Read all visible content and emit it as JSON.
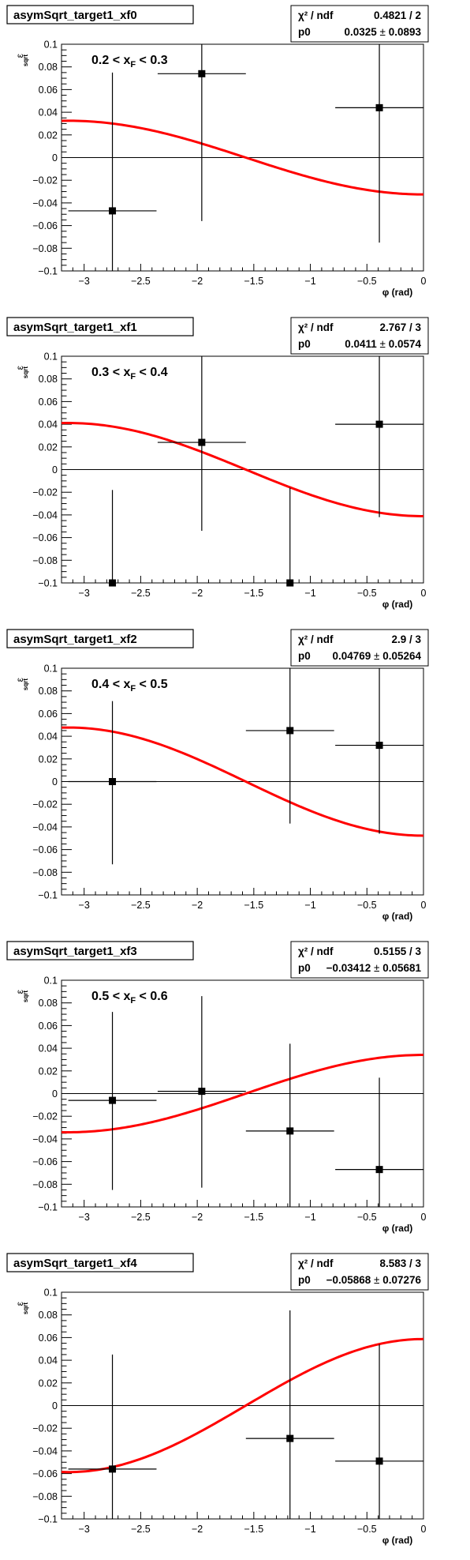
{
  "common": {
    "xlabel": "φ (rad)",
    "ylabel_main": "ε",
    "ylabel_sub": "sqrt",
    "chi2_label": "χ² / ndf",
    "param_label": "p0",
    "pm": "±",
    "fit_color": "#ff0000",
    "marker_color": "#000000"
  },
  "chart_data": [
    {
      "type": "scatter",
      "title": "asymSqrt_target1_xf0",
      "range_label": {
        "lo": "0.2 < x",
        "sub": "F",
        "hi": " < 0.3"
      },
      "stats": {
        "chi2": "0.4821 / 2",
        "p0_value": "0.0325",
        "p0_error": "0.0893"
      },
      "xlim": [
        -3.2,
        0
      ],
      "ylim": [
        -0.1,
        0.1
      ],
      "xticks": [
        -3,
        -2.5,
        -2,
        -1.5,
        -1,
        -0.5,
        0
      ],
      "xtick_labels": [
        "−3",
        "−2.5",
        "−2",
        "−1.5",
        "−1",
        "−0.5",
        "0"
      ],
      "yticks": [
        -0.1,
        -0.08,
        -0.06,
        -0.04,
        -0.02,
        0,
        0.02,
        0.04,
        0.06,
        0.08,
        0.1
      ],
      "ytick_labels": [
        "−0.1",
        "−0.08",
        "−0.06",
        "−0.04",
        "−0.02",
        "0",
        "0.02",
        "0.04",
        "0.06",
        "0.08",
        "0.1"
      ],
      "points": [
        {
          "x": -2.75,
          "y": -0.047,
          "xerr": 0.39,
          "ylo": -0.1,
          "yhi": 0.075
        },
        {
          "x": -1.96,
          "y": 0.074,
          "xerr": 0.39,
          "ylo": -0.056,
          "yhi": 0.1
        },
        {
          "x": -0.39,
          "y": 0.044,
          "xerr": 0.39,
          "ylo": -0.075,
          "yhi": 0.1
        }
      ],
      "fit": {
        "p0": 0.0325
      }
    },
    {
      "type": "scatter",
      "title": "asymSqrt_target1_xf1",
      "range_label": {
        "lo": "0.3 < x",
        "sub": "F",
        "hi": " < 0.4"
      },
      "stats": {
        "chi2": "2.767 / 3",
        "p0_value": "0.0411",
        "p0_error": "0.0574"
      },
      "xlim": [
        -3.2,
        0
      ],
      "ylim": [
        -0.1,
        0.1
      ],
      "xticks": [
        -3,
        -2.5,
        -2,
        -1.5,
        -1,
        -0.5,
        0
      ],
      "xtick_labels": [
        "−3",
        "−2.5",
        "−2",
        "−1.5",
        "−1",
        "−0.5",
        "0"
      ],
      "yticks": [
        -0.1,
        -0.08,
        -0.06,
        -0.04,
        -0.02,
        0,
        0.02,
        0.04,
        0.06,
        0.08,
        0.1
      ],
      "ytick_labels": [
        "−0.1",
        "−0.08",
        "−0.06",
        "−0.04",
        "−0.02",
        "0",
        "0.02",
        "0.04",
        "0.06",
        "0.08",
        "0.1"
      ],
      "points": [
        {
          "x": -2.75,
          "y": -0.1,
          "xerr": 0,
          "ylo": -0.1,
          "yhi": -0.018
        },
        {
          "x": -1.96,
          "y": 0.024,
          "xerr": 0.39,
          "ylo": -0.054,
          "yhi": 0.1
        },
        {
          "x": -1.18,
          "y": -0.1,
          "xerr": 0,
          "ylo": -0.1,
          "yhi": -0.016
        },
        {
          "x": -0.39,
          "y": 0.04,
          "xerr": 0.39,
          "ylo": -0.042,
          "yhi": 0.1
        }
      ],
      "fit": {
        "p0": 0.0411
      }
    },
    {
      "type": "scatter",
      "title": "asymSqrt_target1_xf2",
      "range_label": {
        "lo": "0.4 < x",
        "sub": "F",
        "hi": " < 0.5"
      },
      "stats": {
        "chi2": "2.9 / 3",
        "p0_value": "0.04769",
        "p0_error": "0.05264"
      },
      "xlim": [
        -3.2,
        0
      ],
      "ylim": [
        -0.1,
        0.1
      ],
      "xticks": [
        -3,
        -2.5,
        -2,
        -1.5,
        -1,
        -0.5,
        0
      ],
      "xtick_labels": [
        "−3",
        "−2.5",
        "−2",
        "−1.5",
        "−1",
        "−0.5",
        "0"
      ],
      "yticks": [
        -0.1,
        -0.08,
        -0.06,
        -0.04,
        -0.02,
        0,
        0.02,
        0.04,
        0.06,
        0.08,
        0.1
      ],
      "ytick_labels": [
        "−0.1",
        "−0.08",
        "−0.06",
        "−0.04",
        "−0.02",
        "0",
        "0.02",
        "0.04",
        "0.06",
        "0.08",
        "0.1"
      ],
      "points": [
        {
          "x": -2.75,
          "y": 0.0,
          "xerr": 0.39,
          "ylo": -0.073,
          "yhi": 0.071
        },
        {
          "x": -1.18,
          "y": 0.045,
          "xerr": 0.39,
          "ylo": -0.037,
          "yhi": 0.1
        },
        {
          "x": -0.39,
          "y": 0.032,
          "xerr": 0.39,
          "ylo": -0.046,
          "yhi": 0.1
        }
      ],
      "fit": {
        "p0": 0.04769
      }
    },
    {
      "type": "scatter",
      "title": "asymSqrt_target1_xf3",
      "range_label": {
        "lo": "0.5 < x",
        "sub": "F",
        "hi": " < 0.6"
      },
      "stats": {
        "chi2": "0.5155 / 3",
        "p0_value": "−0.03412",
        "p0_error": "0.05681"
      },
      "xlim": [
        -3.2,
        0
      ],
      "ylim": [
        -0.1,
        0.1
      ],
      "xticks": [
        -3,
        -2.5,
        -2,
        -1.5,
        -1,
        -0.5,
        0
      ],
      "xtick_labels": [
        "−3",
        "−2.5",
        "−2",
        "−1.5",
        "−1",
        "−0.5",
        "0"
      ],
      "yticks": [
        -0.1,
        -0.08,
        -0.06,
        -0.04,
        -0.02,
        0,
        0.02,
        0.04,
        0.06,
        0.08,
        0.1
      ],
      "ytick_labels": [
        "−0.1",
        "−0.08",
        "−0.06",
        "−0.04",
        "−0.02",
        "0",
        "0.02",
        "0.04",
        "0.06",
        "0.08",
        "0.1"
      ],
      "points": [
        {
          "x": -2.75,
          "y": -0.006,
          "xerr": 0.39,
          "ylo": -0.085,
          "yhi": 0.072
        },
        {
          "x": -1.96,
          "y": 0.002,
          "xerr": 0.39,
          "ylo": -0.083,
          "yhi": 0.086
        },
        {
          "x": -1.18,
          "y": -0.033,
          "xerr": 0.39,
          "ylo": -0.1,
          "yhi": 0.044
        },
        {
          "x": -0.39,
          "y": -0.067,
          "xerr": 0.39,
          "ylo": -0.1,
          "yhi": 0.014
        }
      ],
      "fit": {
        "p0": -0.03412
      }
    },
    {
      "type": "scatter",
      "title": "asymSqrt_target1_xf4",
      "range_label": null,
      "stats": {
        "chi2": "8.583 / 3",
        "p0_value": "−0.05868",
        "p0_error": "0.07276"
      },
      "xlim": [
        -3.2,
        0
      ],
      "ylim": [
        -0.1,
        0.1
      ],
      "xticks": [
        -3,
        -2.5,
        -2,
        -1.5,
        -1,
        -0.5,
        0
      ],
      "xtick_labels": [
        "−3",
        "−2.5",
        "−2",
        "−1.5",
        "−1",
        "−0.5",
        "0"
      ],
      "yticks": [
        -0.1,
        -0.08,
        -0.06,
        -0.04,
        -0.02,
        0,
        0.02,
        0.04,
        0.06,
        0.08,
        0.1
      ],
      "ytick_labels": [
        "−0.1",
        "−0.08",
        "−0.06",
        "−0.04",
        "−0.02",
        "0",
        "0.02",
        "0.04",
        "0.06",
        "0.08",
        "0.1"
      ],
      "points": [
        {
          "x": -2.75,
          "y": -0.056,
          "xerr": 0.39,
          "ylo": -0.1,
          "yhi": 0.045
        },
        {
          "x": -1.18,
          "y": -0.029,
          "xerr": 0.39,
          "ylo": -0.1,
          "yhi": 0.084
        },
        {
          "x": -0.39,
          "y": -0.049,
          "xerr": 0.39,
          "ylo": -0.1,
          "yhi": 0.054
        }
      ],
      "fit": {
        "p0": -0.05868
      }
    }
  ]
}
